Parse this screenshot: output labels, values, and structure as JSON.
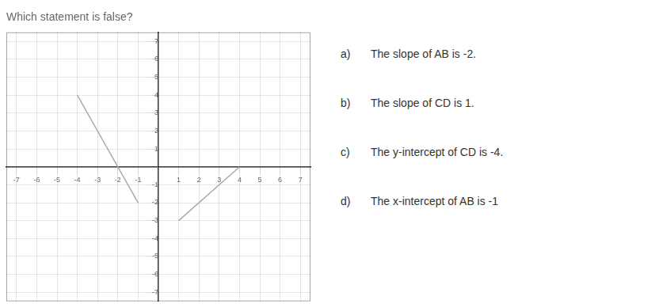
{
  "chart_data": {
    "type": "line",
    "title": "Which statement is false?",
    "series": [
      {
        "x": [
          -4,
          -1
        ],
        "values": [
          4,
          -2
        ],
        "color": "#aaaaaa"
      },
      {
        "x": [
          1,
          4
        ],
        "values": [
          -3,
          0
        ],
        "color": "#aaaaaa"
      }
    ],
    "xlim": [
      -7.5,
      7.5
    ],
    "ylim": [
      -7.5,
      7.5
    ],
    "xticks": [
      -7,
      -6,
      -5,
      -4,
      -3,
      -2,
      -1,
      1,
      2,
      3,
      4,
      5,
      6,
      7
    ],
    "yticks": [
      -7,
      -6,
      -5,
      -4,
      -3,
      -2,
      -1,
      1,
      2,
      3,
      4,
      5,
      6,
      7
    ],
    "grid": true,
    "annotations": [
      [
        "a)",
        "The slope of AB is -2."
      ],
      [
        "b)",
        "The slope of CD is 1."
      ],
      [
        "c)",
        "The y-intercept of CD is -4."
      ],
      [
        "d)",
        "The x-intercept of AB is -1"
      ]
    ]
  }
}
